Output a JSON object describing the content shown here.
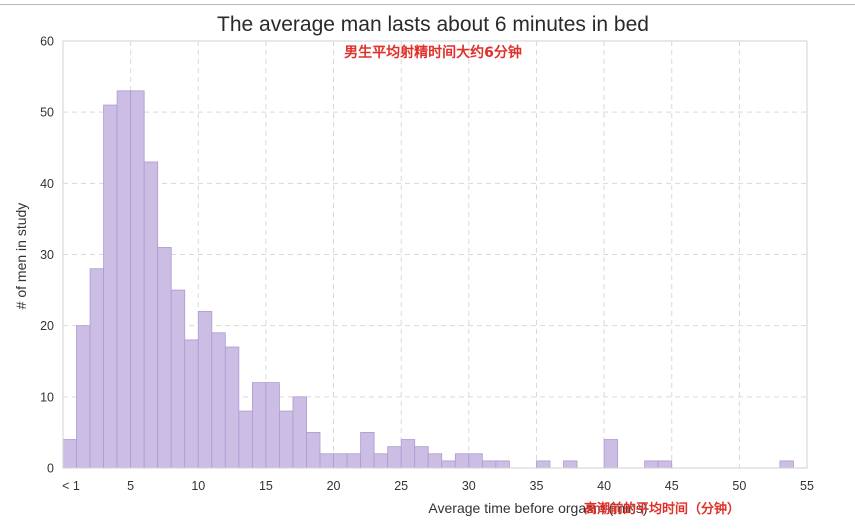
{
  "chart_data": {
    "type": "bar",
    "title": "The average man lasts about 6 minutes in bed",
    "subtitle": "男生平均射精时间大约6分钟",
    "xlabel": "Average time before orgasm (mins)",
    "xlabel_annotation": "高潮前的平均时间（分钟）",
    "ylabel": "# of men in study",
    "xlim": [
      0,
      55
    ],
    "ylim": [
      0,
      60
    ],
    "xticks": [
      {
        "value": 0,
        "label": "< 1"
      },
      {
        "value": 5,
        "label": "5"
      },
      {
        "value": 10,
        "label": "10"
      },
      {
        "value": 15,
        "label": "15"
      },
      {
        "value": 20,
        "label": "20"
      },
      {
        "value": 25,
        "label": "25"
      },
      {
        "value": 30,
        "label": "30"
      },
      {
        "value": 35,
        "label": "35"
      },
      {
        "value": 40,
        "label": "40"
      },
      {
        "value": 45,
        "label": "45"
      },
      {
        "value": 50,
        "label": "50"
      },
      {
        "value": 55,
        "label": "55"
      }
    ],
    "yticks": [
      0,
      10,
      20,
      30,
      40,
      50,
      60
    ],
    "bin_width": 1,
    "bin_starts": [
      0,
      1,
      2,
      3,
      4,
      5,
      6,
      7,
      8,
      9,
      10,
      11,
      12,
      13,
      14,
      15,
      16,
      17,
      18,
      19,
      20,
      21,
      22,
      23,
      24,
      25,
      26,
      27,
      28,
      29,
      30,
      31,
      32,
      33,
      34,
      35,
      36,
      37,
      38,
      39,
      40,
      41,
      42,
      43,
      44,
      45,
      46,
      47,
      48,
      49,
      50,
      51,
      52,
      53,
      54
    ],
    "values": [
      4,
      20,
      28,
      51,
      53,
      53,
      43,
      31,
      25,
      18,
      22,
      19,
      17,
      8,
      12,
      12,
      8,
      10,
      5,
      2,
      2,
      2,
      5,
      2,
      3,
      4,
      3,
      2,
      1,
      2,
      2,
      1,
      1,
      0,
      0,
      1,
      0,
      1,
      0,
      0,
      4,
      0,
      0,
      1,
      1,
      0,
      0,
      0,
      0,
      0,
      0,
      0,
      0,
      1,
      0
    ],
    "grid": true,
    "colors": {
      "bar_fill": "#cbbde3",
      "bar_stroke": "#ad9bd2",
      "grid": "#d9d9d9",
      "annotation": "#e0302a"
    }
  }
}
